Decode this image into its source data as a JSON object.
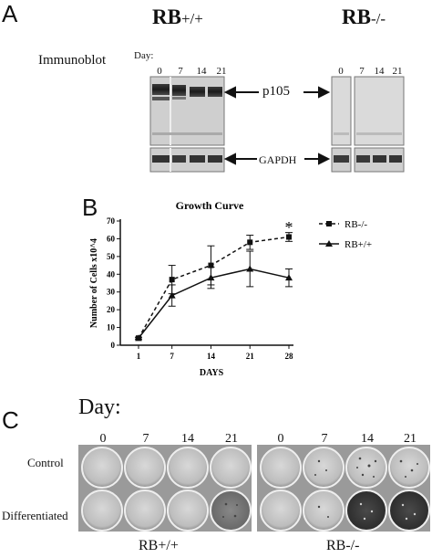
{
  "panelA": {
    "letter": "A",
    "genotype_left": {
      "main": "RB",
      "sup": "+/+"
    },
    "genotype_right": {
      "main": "RB",
      "sup": "-/-"
    },
    "method": "Immunoblot",
    "day_label": "Day:",
    "lanes_left": [
      "0",
      "7",
      "14",
      "21"
    ],
    "lanes_right": [
      "0",
      "7",
      "14",
      "21"
    ],
    "band1": "p105",
    "band2": "GAPDH"
  },
  "panelB": {
    "letter": "B",
    "significance": "*"
  },
  "chart_data": {
    "type": "line",
    "title": "Growth Curve",
    "xlabel": "DAYS",
    "ylabel": "Number of Cells x10^4",
    "x": [
      1,
      7,
      14,
      21,
      28
    ],
    "xticks": [
      "1",
      "7",
      "14",
      "21",
      "28"
    ],
    "yticks": [
      "0",
      "10",
      "20",
      "30",
      "40",
      "50",
      "60",
      "70"
    ],
    "ylim": [
      0,
      70
    ],
    "legend_position": "top-right",
    "series": [
      {
        "name": "RB-/-",
        "marker": "square",
        "style": "dashed",
        "values": [
          4,
          37,
          45,
          58,
          61
        ],
        "errors": [
          0.5,
          8,
          11,
          4,
          2.5
        ]
      },
      {
        "name": "RB+/+",
        "marker": "triangle",
        "style": "solid",
        "values": [
          4,
          28,
          38,
          43,
          38
        ],
        "errors": [
          0.5,
          6,
          6,
          10,
          5
        ]
      }
    ]
  },
  "panelC": {
    "letter": "C",
    "day_label": "Day:",
    "days_left": [
      "0",
      "7",
      "14",
      "21"
    ],
    "days_right": [
      "0",
      "7",
      "14",
      "21"
    ],
    "row1": "Control",
    "row2": "Differentiated",
    "caption_left": "RB+/+",
    "caption_right": "RB-/-"
  }
}
